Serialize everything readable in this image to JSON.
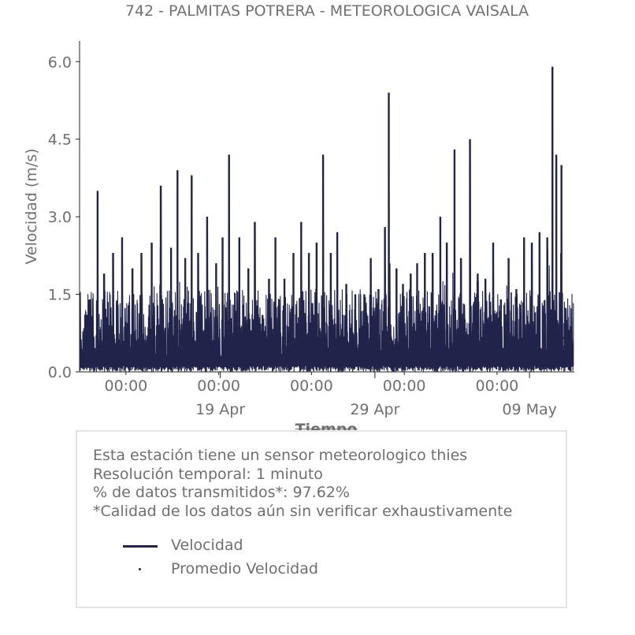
{
  "chart_data": {
    "type": "line",
    "title": "742 - PALMITAS POTRERA - METEOROLOGICA VAISALA",
    "xlabel": "Tiempo",
    "ylabel": "Velocidad (m/s)",
    "ylim": [
      0,
      6.4
    ],
    "yticks": [
      "0.0",
      "1.5",
      "3.0",
      "4.5",
      "6.0"
    ],
    "x_start": "2024-04-10",
    "x_end": "2024-05-12",
    "xtick_labels_top": [
      "00:00",
      "00:00",
      "00:00",
      "00:00",
      "00:00"
    ],
    "xtick_labels_bottom": [
      "19 Apr",
      "29 Apr",
      "09 May"
    ],
    "grid": false,
    "series": [
      {
        "name": "Velocidad",
        "color": "#21244a",
        "peaks": [
          {
            "x": "2024-04-10T12:00",
            "y": 1.1
          },
          {
            "x": "2024-04-10T16:00",
            "y": 1.4
          },
          {
            "x": "2024-04-11T04:00",
            "y": 3.5
          },
          {
            "x": "2024-04-11T14:00",
            "y": 1.9
          },
          {
            "x": "2024-04-12T04:00",
            "y": 2.3
          },
          {
            "x": "2024-04-12T18:00",
            "y": 2.6
          },
          {
            "x": "2024-04-13T10:00",
            "y": 2.0
          },
          {
            "x": "2024-04-14T00:00",
            "y": 2.3
          },
          {
            "x": "2024-04-14T16:00",
            "y": 2.5
          },
          {
            "x": "2024-04-15T06:00",
            "y": 3.6
          },
          {
            "x": "2024-04-15T22:00",
            "y": 2.4
          },
          {
            "x": "2024-04-16T08:00",
            "y": 3.9
          },
          {
            "x": "2024-04-16T20:00",
            "y": 2.2
          },
          {
            "x": "2024-04-17T06:00",
            "y": 3.8
          },
          {
            "x": "2024-04-17T16:00",
            "y": 2.3
          },
          {
            "x": "2024-04-18T06:00",
            "y": 3.0
          },
          {
            "x": "2024-04-18T20:00",
            "y": 2.1
          },
          {
            "x": "2024-04-19T06:00",
            "y": 2.6
          },
          {
            "x": "2024-04-19T16:00",
            "y": 4.2
          },
          {
            "x": "2024-04-20T08:00",
            "y": 2.6
          },
          {
            "x": "2024-04-20T22:00",
            "y": 2.0
          },
          {
            "x": "2024-04-21T08:00",
            "y": 2.9
          },
          {
            "x": "2024-04-21T20:00",
            "y": 1.1
          },
          {
            "x": "2024-04-22T06:00",
            "y": 1.8
          },
          {
            "x": "2024-04-22T16:00",
            "y": 2.6
          },
          {
            "x": "2024-04-23T06:00",
            "y": 1.8
          },
          {
            "x": "2024-04-23T20:00",
            "y": 2.3
          },
          {
            "x": "2024-04-24T08:00",
            "y": 2.9
          },
          {
            "x": "2024-04-24T20:00",
            "y": 2.3
          },
          {
            "x": "2024-04-25T08:00",
            "y": 2.5
          },
          {
            "x": "2024-04-25T18:00",
            "y": 4.2
          },
          {
            "x": "2024-04-26T06:00",
            "y": 2.3
          },
          {
            "x": "2024-04-26T16:00",
            "y": 2.7
          },
          {
            "x": "2024-04-27T06:00",
            "y": 1.7
          },
          {
            "x": "2024-04-27T20:00",
            "y": 1.5
          },
          {
            "x": "2024-04-28T10:00",
            "y": 1.5
          },
          {
            "x": "2024-04-28T20:00",
            "y": 2.2
          },
          {
            "x": "2024-04-29T08:00",
            "y": 1.6
          },
          {
            "x": "2024-04-29T18:00",
            "y": 2.8
          },
          {
            "x": "2024-04-30T00:00",
            "y": 5.4
          },
          {
            "x": "2024-04-30T12:00",
            "y": 2.0
          },
          {
            "x": "2024-04-30T22:00",
            "y": 1.7
          },
          {
            "x": "2024-05-01T10:00",
            "y": 1.9
          },
          {
            "x": "2024-05-01T20:00",
            "y": 2.1
          },
          {
            "x": "2024-05-02T08:00",
            "y": 2.3
          },
          {
            "x": "2024-05-02T20:00",
            "y": 2.3
          },
          {
            "x": "2024-05-03T08:00",
            "y": 3.0
          },
          {
            "x": "2024-05-03T18:00",
            "y": 2.5
          },
          {
            "x": "2024-05-04T06:00",
            "y": 4.3
          },
          {
            "x": "2024-05-04T16:00",
            "y": 2.2
          },
          {
            "x": "2024-05-05T06:00",
            "y": 4.5
          },
          {
            "x": "2024-05-05T18:00",
            "y": 1.9
          },
          {
            "x": "2024-05-06T06:00",
            "y": 1.8
          },
          {
            "x": "2024-05-06T18:00",
            "y": 2.5
          },
          {
            "x": "2024-05-07T06:00",
            "y": 1.4
          },
          {
            "x": "2024-05-07T18:00",
            "y": 2.2
          },
          {
            "x": "2024-05-08T06:00",
            "y": 1.6
          },
          {
            "x": "2024-05-08T18:00",
            "y": 2.6
          },
          {
            "x": "2024-05-09T06:00",
            "y": 2.5
          },
          {
            "x": "2024-05-09T18:00",
            "y": 2.7
          },
          {
            "x": "2024-05-10T06:00",
            "y": 2.6
          },
          {
            "x": "2024-05-10T14:00",
            "y": 5.9
          },
          {
            "x": "2024-05-10T20:00",
            "y": 4.2
          },
          {
            "x": "2024-05-11T04:00",
            "y": 4.0
          }
        ]
      },
      {
        "name": "Promedio Velocidad",
        "color": "#21244a",
        "marker": "dot",
        "points": [
          {
            "x": "2024-05-11T06:00",
            "y": 0.65
          }
        ]
      }
    ]
  },
  "info": {
    "lines": [
      "Esta estación tiene un sensor meteorologico thies",
      "Resolución temporal: 1 minuto",
      "% de datos transmitidos*: 97.62%",
      "*Calidad de los datos aún sin verificar exhaustivamente"
    ]
  },
  "legend": {
    "items": [
      {
        "label": "Velocidad"
      },
      {
        "label": "Promedio Velocidad"
      }
    ]
  }
}
